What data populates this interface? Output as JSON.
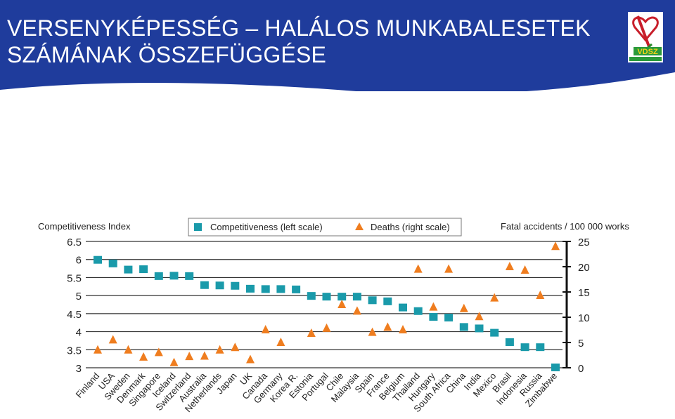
{
  "header": {
    "title_line1": "VERSENYKÉPESSÉG – HALÁLOS MUNKABALESETEK",
    "title_line2": "SZÁMÁNAK ÖSSZEFÜGGÉSE",
    "banner_color": "#1f3c9c",
    "logo": {
      "icon": "vdsz-logo",
      "text": "VDSZ"
    }
  },
  "chart_data": {
    "type": "scatter",
    "left_axis_title": "Competitiveness Index",
    "right_axis_title": "Fatal accidents / 100 000 works",
    "left_ticks": [
      "6.5",
      "6",
      "5.5",
      "5",
      "4.5",
      "4",
      "3.5",
      "3"
    ],
    "right_ticks": [
      "25",
      "20",
      "15",
      "10",
      "5",
      "0"
    ],
    "ylim_left": [
      3,
      6.5
    ],
    "ylim_right": [
      0,
      25
    ],
    "legend_position": "top-center",
    "categories": [
      "Finland",
      "USA",
      "Sweden",
      "Denmark",
      "Singapore",
      "Iceland",
      "Switzerland",
      "Australia",
      "Netherlands",
      "Japan",
      "UK",
      "Canada",
      "Germany",
      "Korea R.",
      "Estonia",
      "Portugal",
      "Chile",
      "Malaysia",
      "Spain",
      "France",
      "Belgium",
      "Thailand",
      "Hungary",
      "South Africa",
      "China",
      "India",
      "Mexico",
      "Brasil",
      "Indonesia",
      "Russia",
      "Zimbabwe"
    ],
    "series": [
      {
        "name": "Competitiveness (left scale)",
        "axis": "left",
        "marker": "square",
        "color": "#1a9aaa",
        "values": [
          6.0,
          5.9,
          5.73,
          5.74,
          5.55,
          5.56,
          5.55,
          5.3,
          5.29,
          5.28,
          5.2,
          5.19,
          5.19,
          5.18,
          5.0,
          4.98,
          4.98,
          4.98,
          4.88,
          4.85,
          4.68,
          4.58,
          4.42,
          4.4,
          4.14,
          4.1,
          3.98,
          3.72,
          3.58,
          3.58,
          3.02
        ]
      },
      {
        "name": "Deaths (right scale)",
        "axis": "right",
        "marker": "triangle",
        "color": "#ef7d1f",
        "values": [
          3.5,
          5.5,
          3.5,
          2.1,
          3.0,
          1.0,
          2.2,
          2.3,
          3.5,
          4.0,
          1.6,
          7.5,
          5.0,
          null,
          6.8,
          7.8,
          12.5,
          11.2,
          7.0,
          8.0,
          7.5,
          19.5,
          12.0,
          19.5,
          11.7,
          10.1,
          13.8,
          20.0,
          19.3,
          14.3,
          24.0
        ]
      }
    ]
  }
}
